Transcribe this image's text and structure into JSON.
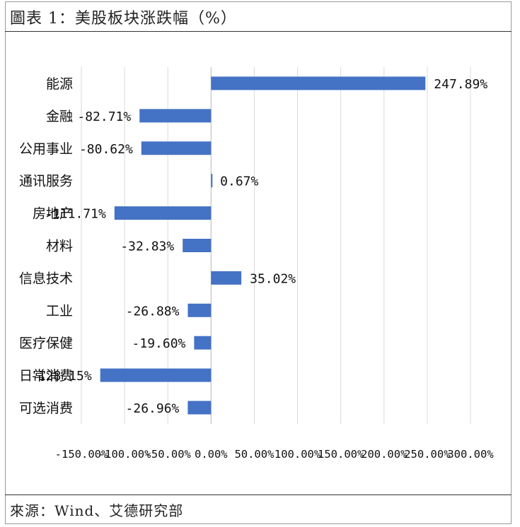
{
  "header": {
    "title": "圖表 1：美股板块涨跌幅（%）"
  },
  "footer": {
    "source": "來源：Wind、艾德研究部"
  },
  "chart_data": {
    "type": "bar",
    "orientation": "horizontal",
    "title": "圖表 1：美股板块涨跌幅（%）",
    "categories": [
      "能源",
      "金融",
      "公用事业",
      "通讯服务",
      "房地产",
      "材料",
      "信息技术",
      "工业",
      "医疗保健",
      "日常消费",
      "可选消费"
    ],
    "values": [
      247.89,
      -82.71,
      -80.62,
      0.67,
      -111.71,
      -32.83,
      35.02,
      -26.88,
      -19.6,
      -128.15,
      -26.96
    ],
    "value_labels": [
      "247.89%",
      "-82.71%",
      "-80.62%",
      "0.67%",
      "-111.71%",
      "-32.83%",
      "35.02%",
      "-26.88%",
      "-19.60%",
      "-128.15%",
      "-26.96%"
    ],
    "xlim": [
      -150,
      300
    ],
    "xticks": [
      -150,
      -100,
      -50,
      0,
      50,
      100,
      150,
      200,
      250,
      300
    ],
    "xtick_labels": [
      "-150.00%",
      "-100.00%",
      "-50.00%",
      "0.00%",
      "50.00%",
      "100.00%",
      "150.00%",
      "200.00%",
      "250.00%",
      "300.00%"
    ],
    "grid": true,
    "legend": "none",
    "bar_color": "#4472C4"
  }
}
